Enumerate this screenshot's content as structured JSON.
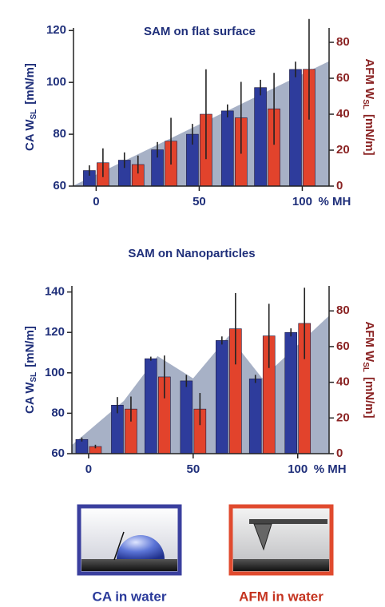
{
  "chart_data": [
    {
      "type": "bar",
      "title": "SAM on flat surface",
      "x": [
        0,
        17,
        33,
        50,
        67,
        83,
        100
      ],
      "xlim": [
        -11,
        113
      ],
      "xticks": [
        0,
        50,
        100
      ],
      "x_label": "% MH",
      "ylim": [
        60,
        121
      ],
      "yticks": [
        60,
        80,
        100,
        120
      ],
      "y2lim": [
        0,
        88
      ],
      "y2ticks": [
        0,
        20,
        40,
        60,
        80
      ],
      "ylabel": {
        "text": "CA W",
        "sub": "SL",
        "unit": "[mN/m]"
      },
      "y2label": {
        "text": "AFM W",
        "sub": "SL",
        "unit": "[mN/m]"
      },
      "shade": {
        "color": "#a7b1c6",
        "x": [
          -11,
          113
        ],
        "values": [
          60,
          108
        ]
      },
      "series": [
        {
          "name": "CA in water",
          "color": "#2e3c9c",
          "values": [
            66,
            70,
            74,
            80,
            89,
            98,
            105
          ],
          "errors": [
            2,
            3,
            3,
            4,
            2.5,
            3,
            3
          ]
        },
        {
          "name": "AFM in water",
          "color": "#e2432c",
          "axis": "y2",
          "values": [
            13,
            12,
            25,
            40,
            38,
            43,
            65
          ],
          "errors": [
            8,
            5,
            13,
            25,
            20,
            20,
            28
          ]
        }
      ]
    },
    {
      "type": "bar",
      "title": "SAM on Nanoparticles",
      "x": [
        0,
        17,
        33,
        50,
        67,
        83,
        100
      ],
      "xlim": [
        -8,
        115
      ],
      "xticks": [
        0,
        50,
        100
      ],
      "x_label": "% MH",
      "ylim": [
        60,
        143
      ],
      "yticks": [
        60,
        80,
        100,
        120,
        140
      ],
      "y2lim": [
        0,
        94
      ],
      "y2ticks": [
        0,
        20,
        40,
        60,
        80
      ],
      "ylabel": {
        "text": "CA W",
        "sub": "SL",
        "unit": "[mN/m]"
      },
      "y2label": {
        "text": "AFM W",
        "sub": "SL",
        "unit": "[mN/m]"
      },
      "shade": {
        "color": "#a7b1c6",
        "x": [
          -8,
          17,
          33,
          50,
          67,
          83,
          115
        ],
        "values": [
          64,
          86,
          108,
          97,
          118,
          97,
          128
        ]
      },
      "series": [
        {
          "color": "#2e3c9c",
          "values": [
            67,
            84,
            107,
            96,
            116,
            97,
            120
          ],
          "errors": [
            1,
            4,
            1,
            3,
            2,
            2,
            2
          ]
        },
        {
          "color": "#e2432c",
          "axis": "y2",
          "values": [
            4,
            25,
            43,
            25,
            70,
            66,
            73
          ],
          "errors": [
            1,
            7,
            12,
            9,
            20,
            18,
            20
          ]
        }
      ]
    }
  ]
}
